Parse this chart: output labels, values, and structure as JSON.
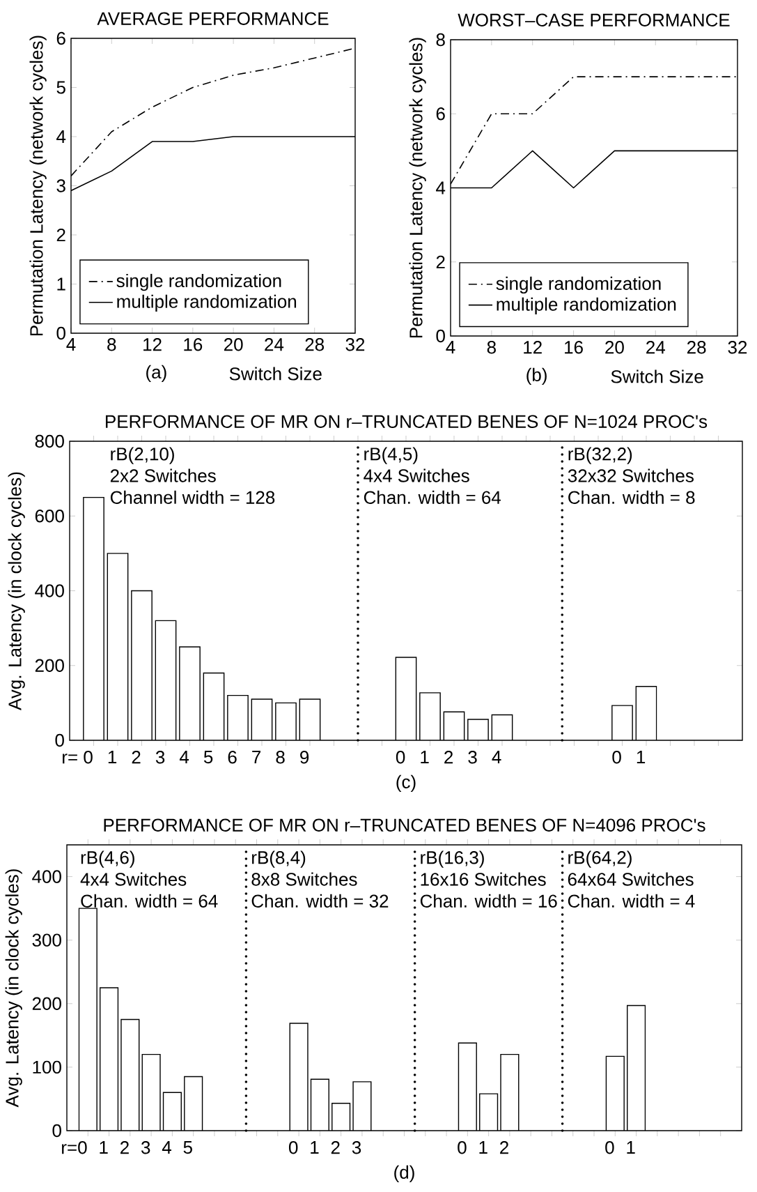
{
  "chart_data": [
    {
      "type": "line",
      "title": "AVERAGE PERFORMANCE",
      "xlabel": "Switch Size",
      "ylabel": "Permutation Latency (network cycles)",
      "x": [
        4,
        8,
        12,
        16,
        20,
        24,
        28,
        32
      ],
      "series": [
        {
          "name": "single randomization",
          "color": "#000000",
          "line_style": "dashdot",
          "values": [
            3.2,
            4.1,
            4.6,
            5.0,
            5.25,
            5.4,
            5.6,
            5.8
          ]
        },
        {
          "name": "multiple randomization",
          "color": "#000000",
          "line_style": "solid",
          "values": [
            2.9,
            3.3,
            3.9,
            3.9,
            4.0,
            4.0,
            4.0,
            4.0
          ]
        }
      ],
      "xlim": [
        4,
        32
      ],
      "ylim": [
        0,
        6
      ],
      "xticks": [
        4,
        8,
        12,
        16,
        20,
        24,
        28,
        32
      ],
      "yticks": [
        0,
        1,
        2,
        3,
        4,
        5,
        6
      ],
      "legend": "bottom left",
      "annotations": [
        "(a)"
      ]
    },
    {
      "type": "line",
      "title": "WORST–CASE PERFORMANCE",
      "xlabel": "Switch Size",
      "ylabel": "Permutation Latency (network cycles)",
      "x": [
        4,
        8,
        12,
        16,
        20,
        24,
        28,
        32
      ],
      "series": [
        {
          "name": "single randomization",
          "color": "#000000",
          "line_style": "dashdot",
          "values": [
            4.1,
            6,
            6,
            7,
            7,
            7,
            7,
            7
          ]
        },
        {
          "name": "multiple randomization",
          "color": "#000000",
          "line_style": "solid",
          "values": [
            4,
            4,
            5,
            4,
            5,
            5,
            5,
            5
          ]
        }
      ],
      "xlim": [
        4,
        32
      ],
      "ylim": [
        0,
        8
      ],
      "xticks": [
        4,
        8,
        12,
        16,
        20,
        24,
        28,
        32
      ],
      "yticks": [
        0,
        2,
        4,
        6,
        8
      ],
      "legend": "bottom left",
      "annotations": [
        "(b)"
      ]
    },
    {
      "type": "bar",
      "title": "PERFORMANCE OF MR ON r–TRUNCATED BENES OF N=1024 PROC's",
      "ylabel": "Avg. Latency (in clock cycles)",
      "categories": [
        "r= 0",
        "1",
        "2",
        "3",
        "4",
        "5",
        "6",
        "7",
        "8",
        "9",
        null,
        null,
        null,
        "0",
        "1",
        "2",
        "3",
        "4",
        null,
        null,
        null,
        null,
        "0",
        "1",
        null,
        null,
        null
      ],
      "values": [
        650,
        500,
        400,
        320,
        250,
        180,
        120,
        110,
        100,
        110,
        null,
        null,
        null,
        222,
        127,
        76,
        56,
        68,
        null,
        null,
        null,
        null,
        93,
        144,
        null,
        null,
        null
      ],
      "color": "#ffffff",
      "ylim": [
        0,
        800
      ],
      "yticks": [
        0,
        200,
        400,
        600,
        800
      ],
      "annotations": [
        "rB(2,10)",
        "2x2 Switches",
        "Channel width = 128",
        "rB(4,5)",
        "4x4 Switches",
        "Chan. width = 64",
        "rB(32,2)",
        "32x32 Switches",
        "Chan. width = 8",
        "(c)"
      ]
    },
    {
      "type": "bar",
      "title": "PERFORMANCE OF MR ON r–TRUNCATED BENES OF N=4096 PROC's",
      "ylabel": "Avg. Latency (in clock cycles)",
      "categories": [
        "r=0",
        "1",
        "2",
        "3",
        "4",
        "5",
        null,
        null,
        null,
        null,
        "0",
        "1",
        "2",
        "3",
        null,
        null,
        null,
        null,
        "0",
        "1",
        "2",
        null,
        null,
        null,
        null,
        "0",
        "1",
        null,
        null,
        null,
        null
      ],
      "values": [
        350,
        225,
        175,
        120,
        60,
        85,
        null,
        null,
        null,
        null,
        169,
        81,
        43,
        77,
        null,
        null,
        null,
        null,
        138,
        58,
        120,
        null,
        null,
        null,
        null,
        117,
        197,
        null,
        null,
        null,
        null
      ],
      "color": "#ffffff",
      "ylim": [
        0,
        450
      ],
      "yticks": [
        0,
        100,
        200,
        300,
        400
      ],
      "annotations": [
        "rB(4,6)",
        "4x4 Switches",
        "Chan. width = 64",
        "rB(8,4)",
        "8x8 Switches",
        "Chan. width = 32",
        "rB(16,3)",
        "16x16 Switches",
        "Chan. width = 16",
        "rB(64,2)",
        "64x64 Switches",
        "Chan. width = 4",
        "(d)"
      ]
    }
  ]
}
